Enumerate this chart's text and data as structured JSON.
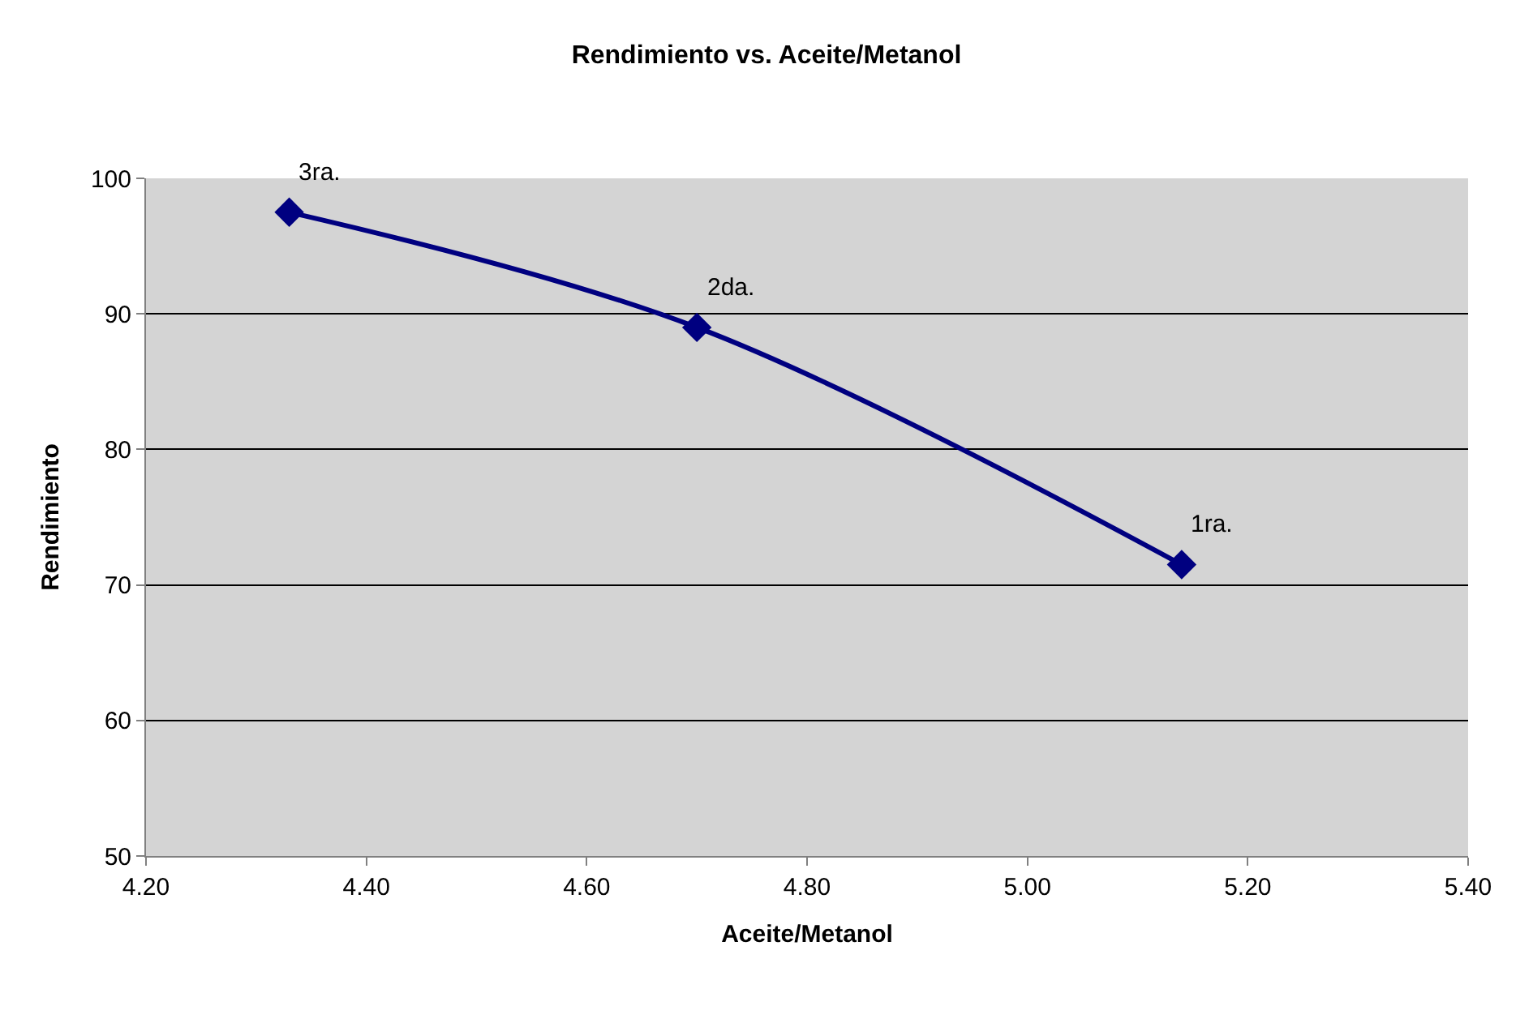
{
  "chart_data": {
    "type": "line",
    "title": "Rendimiento vs. Aceite/Metanol",
    "xlabel": "Aceite/Metanol",
    "ylabel": "Rendimiento",
    "x": [
      4.33,
      4.7,
      5.14
    ],
    "series": [
      {
        "color": "#000080",
        "values": [
          97.5,
          89,
          71.5
        ]
      }
    ],
    "annotations": [
      {
        "text": "3ra.",
        "x": 4.33,
        "y": 97.5
      },
      {
        "text": "2da.",
        "x": 4.7,
        "y": 89
      },
      {
        "text": "1ra.",
        "x": 5.14,
        "y": 71.5
      }
    ],
    "xlim": [
      4.2,
      5.4
    ],
    "xticks": [
      {
        "value": 4.2,
        "label": "4.20"
      },
      {
        "value": 4.4,
        "label": "4.40"
      },
      {
        "value": 4.6,
        "label": "4.60"
      },
      {
        "value": 4.8,
        "label": "4.80"
      },
      {
        "value": 5.0,
        "label": "5.00"
      },
      {
        "value": 5.2,
        "label": "5.20"
      },
      {
        "value": 5.4,
        "label": "5.40"
      }
    ],
    "ylim": [
      50,
      100
    ],
    "yticks": [
      50,
      60,
      70,
      80,
      90,
      100
    ],
    "grid": "y",
    "marker": "diamond",
    "line_style": "solid"
  }
}
